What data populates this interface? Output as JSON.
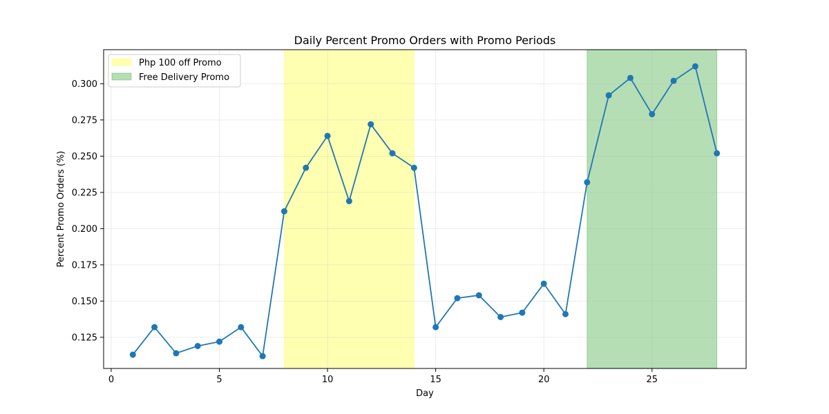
{
  "chart_data": {
    "type": "line",
    "title": "Daily Percent Promo Orders with Promo Periods",
    "xlabel": "Day",
    "ylabel": "Percent Promo Orders (%)",
    "xlim": [
      -0.35,
      29.35
    ],
    "ylim": [
      0.1035,
      0.3235
    ],
    "xticks": [
      0,
      5,
      10,
      15,
      20,
      25
    ],
    "yticks": [
      0.125,
      0.15,
      0.175,
      0.2,
      0.225,
      0.25,
      0.275,
      0.3
    ],
    "ytick_labels": [
      "0.125",
      "0.150",
      "0.175",
      "0.200",
      "0.225",
      "0.250",
      "0.275",
      "0.300"
    ],
    "grid": true,
    "legend_position": "upper-left",
    "series": [
      {
        "color": "#1f77b4",
        "x": [
          1,
          2,
          3,
          4,
          5,
          6,
          7,
          8,
          9,
          10,
          11,
          12,
          13,
          14,
          15,
          16,
          17,
          18,
          19,
          20,
          21,
          22,
          23,
          24,
          25,
          26,
          27,
          28
        ],
        "values": [
          0.113,
          0.132,
          0.114,
          0.119,
          0.122,
          0.132,
          0.112,
          0.212,
          0.242,
          0.264,
          0.219,
          0.272,
          0.252,
          0.242,
          0.132,
          0.152,
          0.154,
          0.139,
          0.142,
          0.162,
          0.141,
          0.232,
          0.292,
          0.304,
          0.279,
          0.302,
          0.312,
          0.252
        ]
      }
    ],
    "spans": [
      {
        "label": "Php 100 off Promo",
        "start": 8,
        "end": 14,
        "color": "#ffff66",
        "opacity": 0.5
      },
      {
        "label": "Free Delivery Promo",
        "start": 22,
        "end": 28,
        "color": "#2ca02c",
        "opacity": 0.35
      }
    ]
  }
}
